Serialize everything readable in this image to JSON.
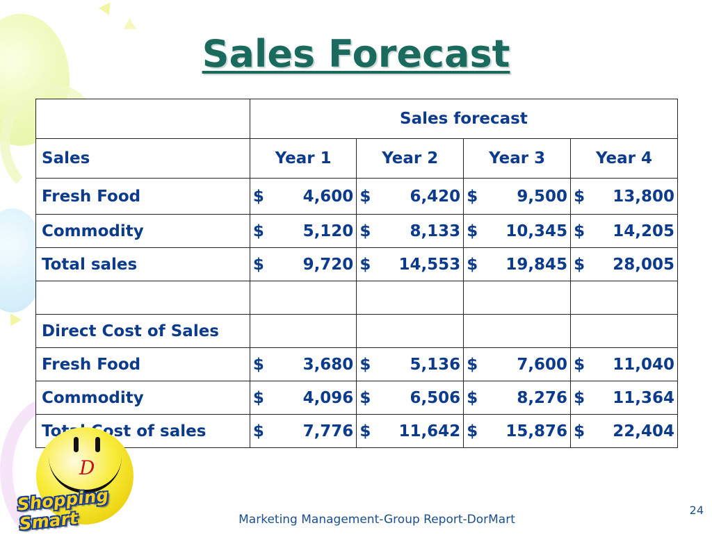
{
  "slide": {
    "title": "Sales Forecast",
    "footer": "Marketing Management-Group Report-DorMart",
    "page_number": "24"
  },
  "logo": {
    "letter": "D",
    "brand_text": "Shopping Smart"
  },
  "table": {
    "group_header": "Sales forecast",
    "columns": [
      "Sales",
      "Year 1",
      "Year 2",
      "Year 3",
      "Year 4"
    ],
    "rows": [
      {
        "label": "Fresh Food",
        "values": [
          "4,600",
          "6,420",
          "9,500",
          "13,800"
        ]
      },
      {
        "label": "Commodity",
        "values": [
          "5,120",
          "8,133",
          "10,345",
          "14,205"
        ]
      },
      {
        "label": "Total sales",
        "values": [
          "9,720",
          "14,553",
          "19,845",
          "28,005"
        ]
      },
      {
        "label": "",
        "values": [
          "",
          "",
          "",
          ""
        ]
      },
      {
        "label": "Direct Cost of Sales",
        "values": [
          "",
          "",
          "",
          ""
        ]
      },
      {
        "label": "Fresh Food",
        "values": [
          "3,680",
          "5,136",
          "7,600",
          "11,040"
        ]
      },
      {
        "label": "Commodity",
        "values": [
          "4,096",
          "6,506",
          "8,276",
          "11,364"
        ]
      },
      {
        "label": "Total Cost of sales",
        "values": [
          "7,776",
          "11,642",
          "15,876",
          "22,404"
        ]
      }
    ],
    "currency_symbol": "$"
  }
}
